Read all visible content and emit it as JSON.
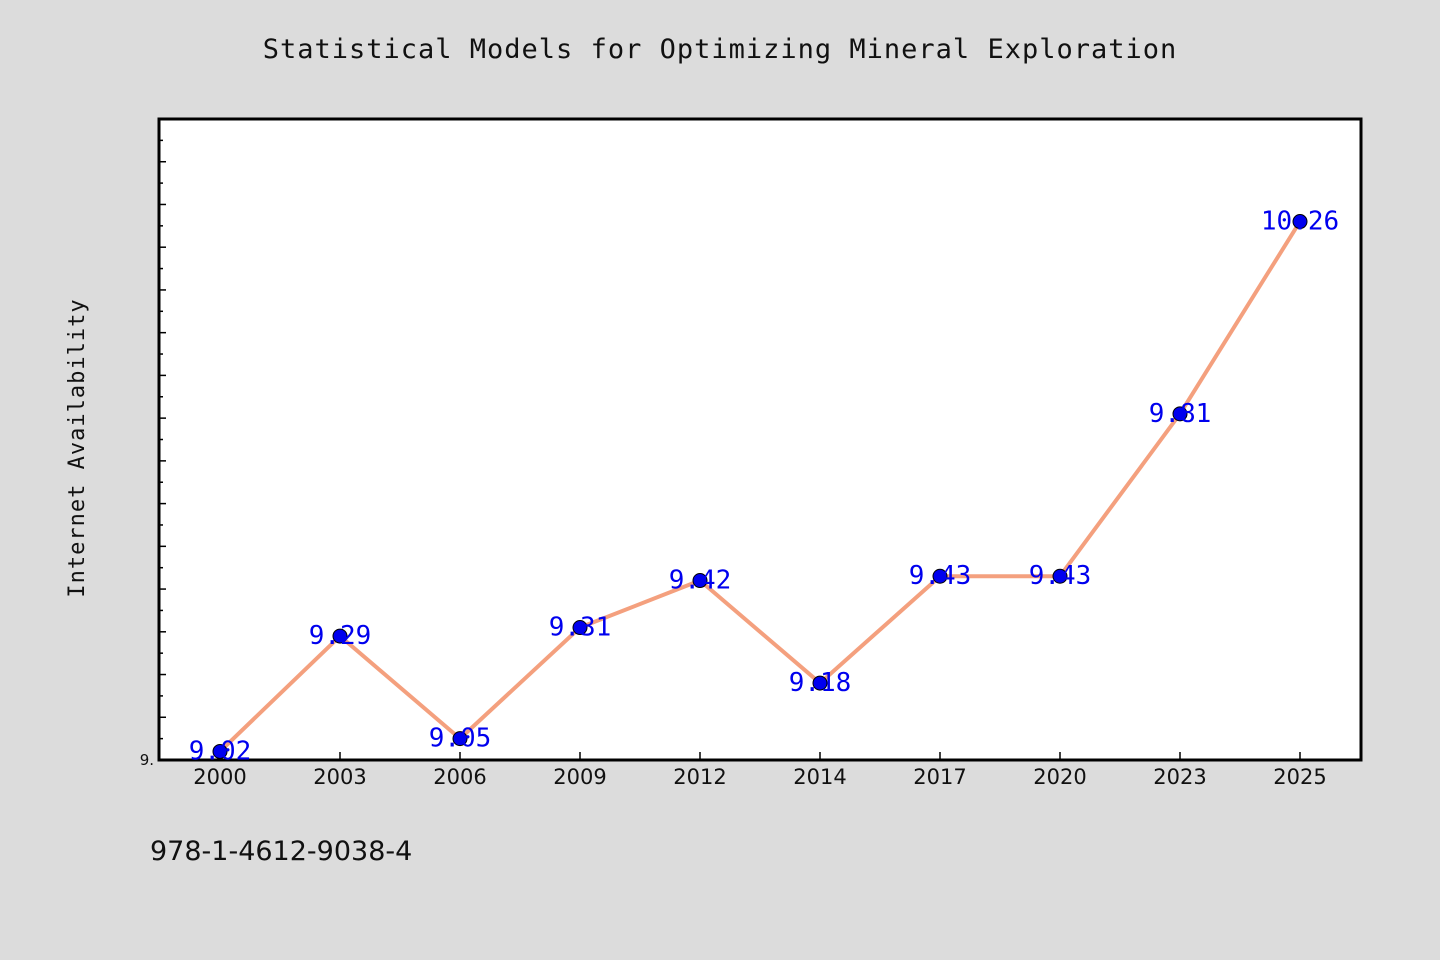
{
  "chart_data": {
    "type": "line",
    "title": "Statistical Models for Optimizing Mineral Exploration",
    "xlabel": "",
    "ylabel": "Internet Availability",
    "categories": [
      "2000",
      "2003",
      "2006",
      "2009",
      "2012",
      "2014",
      "2017",
      "2020",
      "2023",
      "2025"
    ],
    "series": [
      {
        "values": [
          9.02,
          9.29,
          9.05,
          9.31,
          9.42,
          9.18,
          9.43,
          9.43,
          9.81,
          10.26
        ]
      }
    ],
    "y_tick_labels": [
      "9."
    ],
    "ylim": [
      9.0,
      10.5
    ],
    "grid": false,
    "legend": "none",
    "colors": {
      "line": "#f4a07e",
      "marker": "#0000ee",
      "data_label": "#0000ee",
      "background": "#dcdcdc",
      "plot_background": "#ffffff"
    }
  },
  "footer": {
    "code": "978-1-4612-9038-4"
  }
}
